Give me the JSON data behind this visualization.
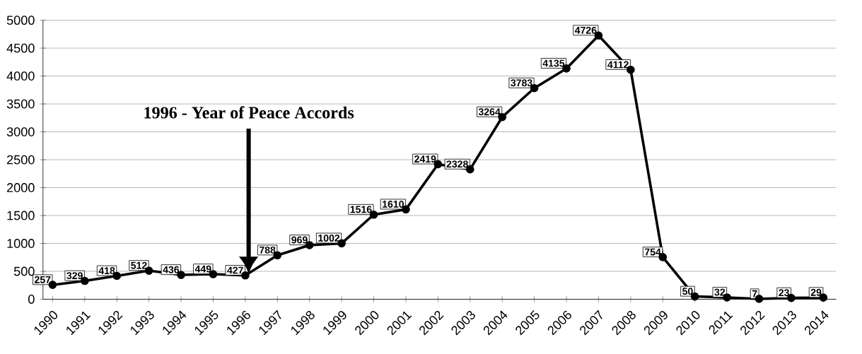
{
  "chart_data": {
    "type": "line",
    "categories": [
      "1990",
      "1991",
      "1992",
      "1993",
      "1994",
      "1995",
      "1996",
      "1997",
      "1998",
      "1999",
      "2000",
      "2001",
      "2002",
      "2003",
      "2004",
      "2005",
      "2006",
      "2007",
      "2008",
      "2009",
      "2010",
      "2011",
      "2012",
      "2013",
      "2014"
    ],
    "series": [
      {
        "color": "#000000",
        "values": [
          257,
          329,
          418,
          512,
          436,
          449,
          427,
          788,
          969,
          1002,
          1516,
          1610,
          2419,
          2328,
          3264,
          3783,
          4135,
          4726,
          4112,
          754,
          50,
          32,
          7,
          23,
          29
        ]
      }
    ],
    "ylim": [
      0,
      5000
    ],
    "yticks": [
      0,
      500,
      1000,
      1500,
      2000,
      2500,
      3000,
      3500,
      4000,
      4500,
      5000
    ],
    "grid": "y",
    "marker": "circle",
    "line_style": "solid",
    "data_labels": true,
    "annotations": [
      "1996 - Year of Peace Accords"
    ]
  }
}
